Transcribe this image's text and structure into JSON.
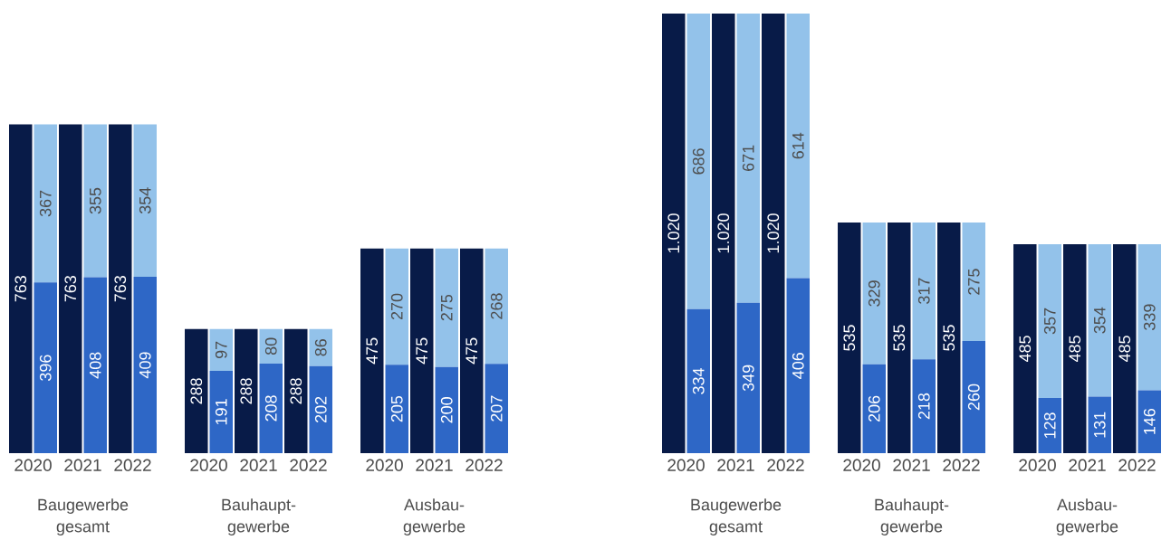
{
  "chart_data": [
    {
      "type": "bar",
      "title": "Baugewerbe gesamt",
      "categories": [
        "2020",
        null,
        "2021",
        null,
        "2022",
        null
      ],
      "stacked": true,
      "series": [
        {
          "color": "#081b48",
          "values": [
            763,
            null,
            763,
            null,
            763,
            null
          ],
          "value_labels": [
            "763",
            null,
            "763",
            null,
            "763",
            null
          ]
        },
        {
          "color": "#2e67c6",
          "values": [
            null,
            396,
            null,
            408,
            null,
            409
          ],
          "value_labels": [
            null,
            "396",
            null,
            "408",
            null,
            "409"
          ]
        },
        {
          "color": "#93c2ea",
          "values": [
            null,
            367,
            null,
            355,
            null,
            354
          ],
          "value_labels": [
            null,
            "367",
            null,
            "355",
            null,
            "354"
          ]
        }
      ]
    },
    {
      "type": "bar",
      "title": "Bauhaupt-gewerbe",
      "categories": [
        "2020",
        null,
        "2021",
        null,
        "2022",
        null
      ],
      "stacked": true,
      "series": [
        {
          "color": "#081b48",
          "values": [
            288,
            null,
            288,
            null,
            288,
            null
          ],
          "value_labels": [
            "288",
            null,
            "288",
            null,
            "288",
            null
          ]
        },
        {
          "color": "#2e67c6",
          "values": [
            null,
            191,
            null,
            208,
            null,
            202
          ],
          "value_labels": [
            null,
            "191",
            null,
            "208",
            null,
            "202"
          ]
        },
        {
          "color": "#93c2ea",
          "values": [
            null,
            97,
            null,
            80,
            null,
            86
          ],
          "value_labels": [
            null,
            "97",
            null,
            "80",
            null,
            "86"
          ]
        }
      ]
    },
    {
      "type": "bar",
      "title": "Ausbau-gewerbe",
      "categories": [
        "2020",
        null,
        "2021",
        null,
        "2022",
        null
      ],
      "stacked": true,
      "series": [
        {
          "color": "#081b48",
          "values": [
            475,
            null,
            475,
            null,
            475,
            null
          ],
          "value_labels": [
            "475",
            null,
            "475",
            null,
            "475",
            null
          ]
        },
        {
          "color": "#2e67c6",
          "values": [
            null,
            205,
            null,
            200,
            null,
            207
          ],
          "value_labels": [
            null,
            "205",
            null,
            "200",
            null,
            "207"
          ]
        },
        {
          "color": "#93c2ea",
          "values": [
            null,
            270,
            null,
            275,
            null,
            268
          ],
          "value_labels": [
            null,
            "270",
            null,
            "275",
            null,
            "268"
          ]
        }
      ]
    },
    {
      "type": "bar",
      "title": "Baugewerbe gesamt",
      "categories": [
        "2020",
        null,
        "2021",
        null,
        "2022",
        null
      ],
      "stacked": true,
      "series": [
        {
          "color": "#081b48",
          "values": [
            1020,
            null,
            1020,
            null,
            1020,
            null
          ],
          "value_labels": [
            "1.020",
            null,
            "1.020",
            null,
            "1.020",
            null
          ]
        },
        {
          "color": "#2e67c6",
          "values": [
            null,
            334,
            null,
            349,
            null,
            406
          ],
          "value_labels": [
            null,
            "334",
            null,
            "349",
            null,
            "406"
          ]
        },
        {
          "color": "#93c2ea",
          "values": [
            null,
            686,
            null,
            671,
            null,
            614
          ],
          "value_labels": [
            null,
            "686",
            null,
            "671",
            null,
            "614"
          ]
        }
      ]
    },
    {
      "type": "bar",
      "title": "Bauhaupt-gewerbe",
      "categories": [
        "2020",
        null,
        "2021",
        null,
        "2022",
        null
      ],
      "stacked": true,
      "series": [
        {
          "color": "#081b48",
          "values": [
            535,
            null,
            535,
            null,
            535,
            null
          ],
          "value_labels": [
            "535",
            null,
            "535",
            null,
            "535",
            null
          ]
        },
        {
          "color": "#2e67c6",
          "values": [
            null,
            206,
            null,
            218,
            null,
            260
          ],
          "value_labels": [
            null,
            "206",
            null,
            "218",
            null,
            "260"
          ]
        },
        {
          "color": "#93c2ea",
          "values": [
            null,
            329,
            null,
            317,
            null,
            275
          ],
          "value_labels": [
            null,
            "329",
            null,
            "317",
            null,
            "275"
          ]
        }
      ]
    },
    {
      "type": "bar",
      "title": "Ausbau-gewerbe",
      "categories": [
        "2020",
        null,
        "2021",
        null,
        "2022",
        null
      ],
      "stacked": true,
      "series": [
        {
          "color": "#081b48",
          "values": [
            485,
            null,
            485,
            null,
            485,
            null
          ],
          "value_labels": [
            "485",
            null,
            "485",
            null,
            "485",
            null
          ]
        },
        {
          "color": "#2e67c6",
          "values": [
            null,
            128,
            null,
            131,
            null,
            146
          ],
          "value_labels": [
            null,
            "128",
            null,
            "131",
            null,
            "146"
          ]
        },
        {
          "color": "#93c2ea",
          "values": [
            null,
            357,
            null,
            354,
            null,
            339
          ],
          "value_labels": [
            null,
            "357",
            null,
            "354",
            null,
            "339"
          ]
        }
      ]
    }
  ]
}
